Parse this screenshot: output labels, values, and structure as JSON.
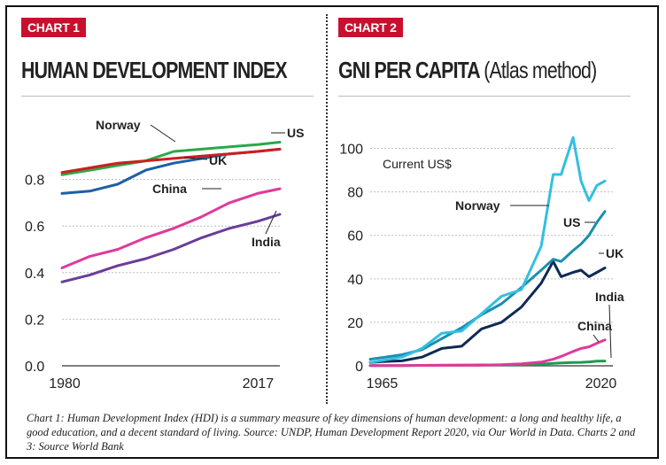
{
  "chart1": {
    "tag": "CHART 1",
    "title": "HUMAN DEVELOPMENT INDEX"
  },
  "chart2": {
    "tag": "CHART 2",
    "title": "GNI PER CAPITA",
    "title_sub": "(Atlas method)"
  },
  "note": "Chart 1: Human Development Index (HDI) is a summary measure of key dimensions of human development: a long and healthy life, a good education, and a decent standard of living. Source: UNDP, Human Development Report 2020, via Our World in Data. Charts 2 and 3: Source World Bank",
  "colors": {
    "Norway": "#2aa84a",
    "US": "#cc1f1f",
    "UK": "#1f5fa6",
    "China": "#e0399a",
    "India": "#6a3d9a",
    "Norway2": "#33bfe0",
    "US2": "#1a8fb0",
    "UK2": "#0f2a55",
    "India2": "#1f9a50",
    "China2": "#e0399a"
  },
  "chart_data": [
    {
      "type": "line",
      "title": "HUMAN DEVELOPMENT INDEX",
      "xlabel": "",
      "ylabel": "",
      "x_ticks": [
        1980,
        2017
      ],
      "y_ticks": [
        "0.0",
        "0.2",
        "0.4",
        "0.6",
        "0.8"
      ],
      "xlim": [
        1980,
        2019
      ],
      "ylim": [
        0,
        1.0
      ],
      "grid": "horizontal",
      "series": [
        {
          "name": "Norway",
          "x": [
            1980,
            1985,
            1990,
            1995,
            2000,
            2005,
            2010,
            2015,
            2019
          ],
          "values": [
            0.82,
            0.84,
            0.86,
            0.88,
            0.92,
            0.93,
            0.94,
            0.95,
            0.96
          ]
        },
        {
          "name": "US",
          "x": [
            1980,
            1985,
            1990,
            1995,
            2000,
            2005,
            2010,
            2015,
            2019
          ],
          "values": [
            0.83,
            0.85,
            0.87,
            0.88,
            0.89,
            0.9,
            0.91,
            0.92,
            0.93
          ]
        },
        {
          "name": "UK",
          "x": [
            1980,
            1985,
            1990,
            1995,
            2000,
            2005,
            2010,
            2015,
            2019
          ],
          "values": [
            0.74,
            0.75,
            0.78,
            0.84,
            0.87,
            0.89,
            0.91,
            0.92,
            0.93
          ]
        },
        {
          "name": "China",
          "x": [
            1980,
            1985,
            1990,
            1995,
            2000,
            2005,
            2010,
            2015,
            2019
          ],
          "values": [
            0.42,
            0.47,
            0.5,
            0.55,
            0.59,
            0.64,
            0.7,
            0.74,
            0.76
          ]
        },
        {
          "name": "India",
          "x": [
            1980,
            1985,
            1990,
            1995,
            2000,
            2005,
            2010,
            2015,
            2019
          ],
          "values": [
            0.36,
            0.39,
            0.43,
            0.46,
            0.5,
            0.55,
            0.59,
            0.62,
            0.65
          ]
        }
      ]
    },
    {
      "type": "line",
      "title": "GNI PER CAPITA",
      "subtitle": "(Atlas method)",
      "annotation": "Current US$",
      "xlabel": "",
      "ylabel": "",
      "x_ticks": [
        1965,
        2020
      ],
      "y_ticks": [
        0,
        20,
        40,
        60,
        80,
        100
      ],
      "xlim": [
        1962,
        2023
      ],
      "ylim": [
        0,
        110
      ],
      "grid": "horizontal",
      "series": [
        {
          "name": "Norway",
          "x": [
            1962,
            1965,
            1970,
            1975,
            1980,
            1985,
            1990,
            1995,
            2000,
            2005,
            2008,
            2010,
            2013,
            2015,
            2017,
            2019,
            2021
          ],
          "values": [
            1.5,
            2.5,
            4,
            8,
            15,
            16,
            24,
            32,
            35,
            55,
            88,
            88,
            105,
            85,
            76,
            83,
            85
          ]
        },
        {
          "name": "US",
          "x": [
            1962,
            1965,
            1970,
            1975,
            1980,
            1985,
            1990,
            1995,
            2000,
            2005,
            2008,
            2010,
            2013,
            2015,
            2017,
            2019,
            2021
          ],
          "values": [
            3,
            3.8,
            5.1,
            7.4,
            12.5,
            17.5,
            23.5,
            28.5,
            36,
            44,
            49,
            48,
            53,
            56,
            60,
            66,
            71
          ]
        },
        {
          "name": "UK",
          "x": [
            1962,
            1965,
            1970,
            1975,
            1980,
            1985,
            1990,
            1995,
            2000,
            2005,
            2008,
            2010,
            2013,
            2015,
            2017,
            2019,
            2021
          ],
          "values": [
            1.5,
            1.9,
            2.3,
            4,
            8,
            9,
            17,
            20,
            27,
            38,
            48,
            41,
            43,
            44,
            41,
            43,
            45
          ]
        },
        {
          "name": "China",
          "x": [
            1962,
            1965,
            1970,
            1975,
            1980,
            1985,
            1990,
            1995,
            2000,
            2005,
            2008,
            2010,
            2013,
            2015,
            2017,
            2019,
            2021
          ],
          "values": [
            0.1,
            0.1,
            0.1,
            0.2,
            0.2,
            0.3,
            0.3,
            0.5,
            0.9,
            1.7,
            3,
            4.3,
            6.6,
            8,
            8.7,
            10.4,
            11.9
          ]
        },
        {
          "name": "India",
          "x": [
            1962,
            1965,
            1970,
            1975,
            1980,
            1985,
            1990,
            1995,
            2000,
            2005,
            2008,
            2010,
            2013,
            2015,
            2017,
            2019,
            2021
          ],
          "values": [
            0.1,
            0.1,
            0.1,
            0.2,
            0.3,
            0.3,
            0.4,
            0.4,
            0.4,
            0.7,
            1.1,
            1.3,
            1.5,
            1.6,
            1.8,
            2.1,
            2.2
          ]
        }
      ]
    }
  ]
}
